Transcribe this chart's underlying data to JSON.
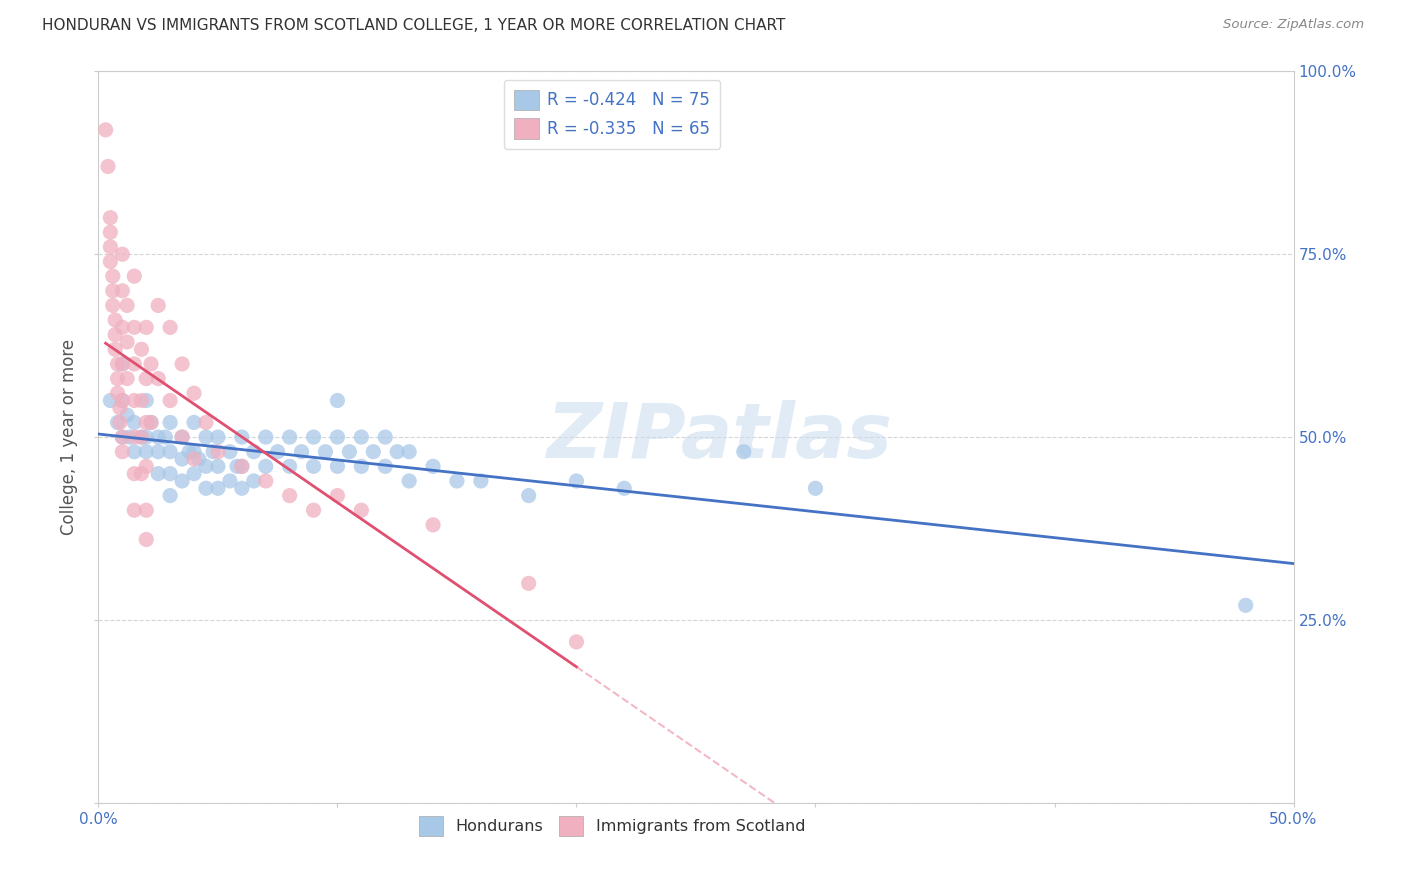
{
  "title": "HONDURAN VS IMMIGRANTS FROM SCOTLAND COLLEGE, 1 YEAR OR MORE CORRELATION CHART",
  "source": "Source: ZipAtlas.com",
  "ylabel": "College, 1 year or more",
  "xlim": [
    0.0,
    0.5
  ],
  "ylim": [
    0.0,
    1.0
  ],
  "blue_color": "#A8C8E8",
  "pink_color": "#F0B0C0",
  "blue_line_color": "#4472C4",
  "pink_line_color": "#E05070",
  "tick_color": "#4472C4",
  "R_blue": -0.424,
  "N_blue": 75,
  "R_pink": -0.335,
  "N_pink": 65,
  "watermark": "ZIPatlas",
  "legend_label_blue": "Hondurans",
  "legend_label_pink": "Immigrants from Scotland",
  "blue_scatter": [
    [
      0.005,
      0.55
    ],
    [
      0.008,
      0.52
    ],
    [
      0.01,
      0.6
    ],
    [
      0.01,
      0.55
    ],
    [
      0.01,
      0.5
    ],
    [
      0.012,
      0.53
    ],
    [
      0.013,
      0.5
    ],
    [
      0.015,
      0.52
    ],
    [
      0.015,
      0.48
    ],
    [
      0.018,
      0.5
    ],
    [
      0.02,
      0.55
    ],
    [
      0.02,
      0.5
    ],
    [
      0.02,
      0.48
    ],
    [
      0.022,
      0.52
    ],
    [
      0.025,
      0.5
    ],
    [
      0.025,
      0.48
    ],
    [
      0.025,
      0.45
    ],
    [
      0.028,
      0.5
    ],
    [
      0.03,
      0.52
    ],
    [
      0.03,
      0.48
    ],
    [
      0.03,
      0.45
    ],
    [
      0.03,
      0.42
    ],
    [
      0.035,
      0.5
    ],
    [
      0.035,
      0.47
    ],
    [
      0.035,
      0.44
    ],
    [
      0.038,
      0.48
    ],
    [
      0.04,
      0.52
    ],
    [
      0.04,
      0.48
    ],
    [
      0.04,
      0.45
    ],
    [
      0.042,
      0.47
    ],
    [
      0.045,
      0.5
    ],
    [
      0.045,
      0.46
    ],
    [
      0.045,
      0.43
    ],
    [
      0.048,
      0.48
    ],
    [
      0.05,
      0.5
    ],
    [
      0.05,
      0.46
    ],
    [
      0.05,
      0.43
    ],
    [
      0.055,
      0.48
    ],
    [
      0.055,
      0.44
    ],
    [
      0.058,
      0.46
    ],
    [
      0.06,
      0.5
    ],
    [
      0.06,
      0.46
    ],
    [
      0.06,
      0.43
    ],
    [
      0.065,
      0.48
    ],
    [
      0.065,
      0.44
    ],
    [
      0.07,
      0.5
    ],
    [
      0.07,
      0.46
    ],
    [
      0.075,
      0.48
    ],
    [
      0.08,
      0.5
    ],
    [
      0.08,
      0.46
    ],
    [
      0.085,
      0.48
    ],
    [
      0.09,
      0.5
    ],
    [
      0.09,
      0.46
    ],
    [
      0.095,
      0.48
    ],
    [
      0.1,
      0.55
    ],
    [
      0.1,
      0.5
    ],
    [
      0.1,
      0.46
    ],
    [
      0.105,
      0.48
    ],
    [
      0.11,
      0.5
    ],
    [
      0.11,
      0.46
    ],
    [
      0.115,
      0.48
    ],
    [
      0.12,
      0.5
    ],
    [
      0.12,
      0.46
    ],
    [
      0.125,
      0.48
    ],
    [
      0.13,
      0.48
    ],
    [
      0.13,
      0.44
    ],
    [
      0.14,
      0.46
    ],
    [
      0.15,
      0.44
    ],
    [
      0.16,
      0.44
    ],
    [
      0.18,
      0.42
    ],
    [
      0.2,
      0.44
    ],
    [
      0.22,
      0.43
    ],
    [
      0.27,
      0.48
    ],
    [
      0.3,
      0.43
    ],
    [
      0.48,
      0.27
    ]
  ],
  "pink_scatter": [
    [
      0.003,
      0.92
    ],
    [
      0.004,
      0.87
    ],
    [
      0.005,
      0.8
    ],
    [
      0.005,
      0.78
    ],
    [
      0.005,
      0.76
    ],
    [
      0.005,
      0.74
    ],
    [
      0.006,
      0.72
    ],
    [
      0.006,
      0.7
    ],
    [
      0.006,
      0.68
    ],
    [
      0.007,
      0.66
    ],
    [
      0.007,
      0.64
    ],
    [
      0.007,
      0.62
    ],
    [
      0.008,
      0.6
    ],
    [
      0.008,
      0.58
    ],
    [
      0.008,
      0.56
    ],
    [
      0.009,
      0.54
    ],
    [
      0.009,
      0.52
    ],
    [
      0.01,
      0.75
    ],
    [
      0.01,
      0.7
    ],
    [
      0.01,
      0.65
    ],
    [
      0.01,
      0.6
    ],
    [
      0.01,
      0.55
    ],
    [
      0.01,
      0.5
    ],
    [
      0.01,
      0.48
    ],
    [
      0.012,
      0.68
    ],
    [
      0.012,
      0.63
    ],
    [
      0.012,
      0.58
    ],
    [
      0.015,
      0.72
    ],
    [
      0.015,
      0.65
    ],
    [
      0.015,
      0.6
    ],
    [
      0.015,
      0.55
    ],
    [
      0.015,
      0.5
    ],
    [
      0.015,
      0.45
    ],
    [
      0.015,
      0.4
    ],
    [
      0.018,
      0.62
    ],
    [
      0.018,
      0.55
    ],
    [
      0.018,
      0.5
    ],
    [
      0.018,
      0.45
    ],
    [
      0.02,
      0.65
    ],
    [
      0.02,
      0.58
    ],
    [
      0.02,
      0.52
    ],
    [
      0.02,
      0.46
    ],
    [
      0.02,
      0.4
    ],
    [
      0.02,
      0.36
    ],
    [
      0.022,
      0.6
    ],
    [
      0.022,
      0.52
    ],
    [
      0.025,
      0.68
    ],
    [
      0.025,
      0.58
    ],
    [
      0.03,
      0.65
    ],
    [
      0.03,
      0.55
    ],
    [
      0.035,
      0.6
    ],
    [
      0.035,
      0.5
    ],
    [
      0.04,
      0.56
    ],
    [
      0.04,
      0.47
    ],
    [
      0.045,
      0.52
    ],
    [
      0.05,
      0.48
    ],
    [
      0.06,
      0.46
    ],
    [
      0.07,
      0.44
    ],
    [
      0.08,
      0.42
    ],
    [
      0.09,
      0.4
    ],
    [
      0.1,
      0.42
    ],
    [
      0.11,
      0.4
    ],
    [
      0.14,
      0.38
    ],
    [
      0.18,
      0.3
    ],
    [
      0.2,
      0.22
    ]
  ]
}
